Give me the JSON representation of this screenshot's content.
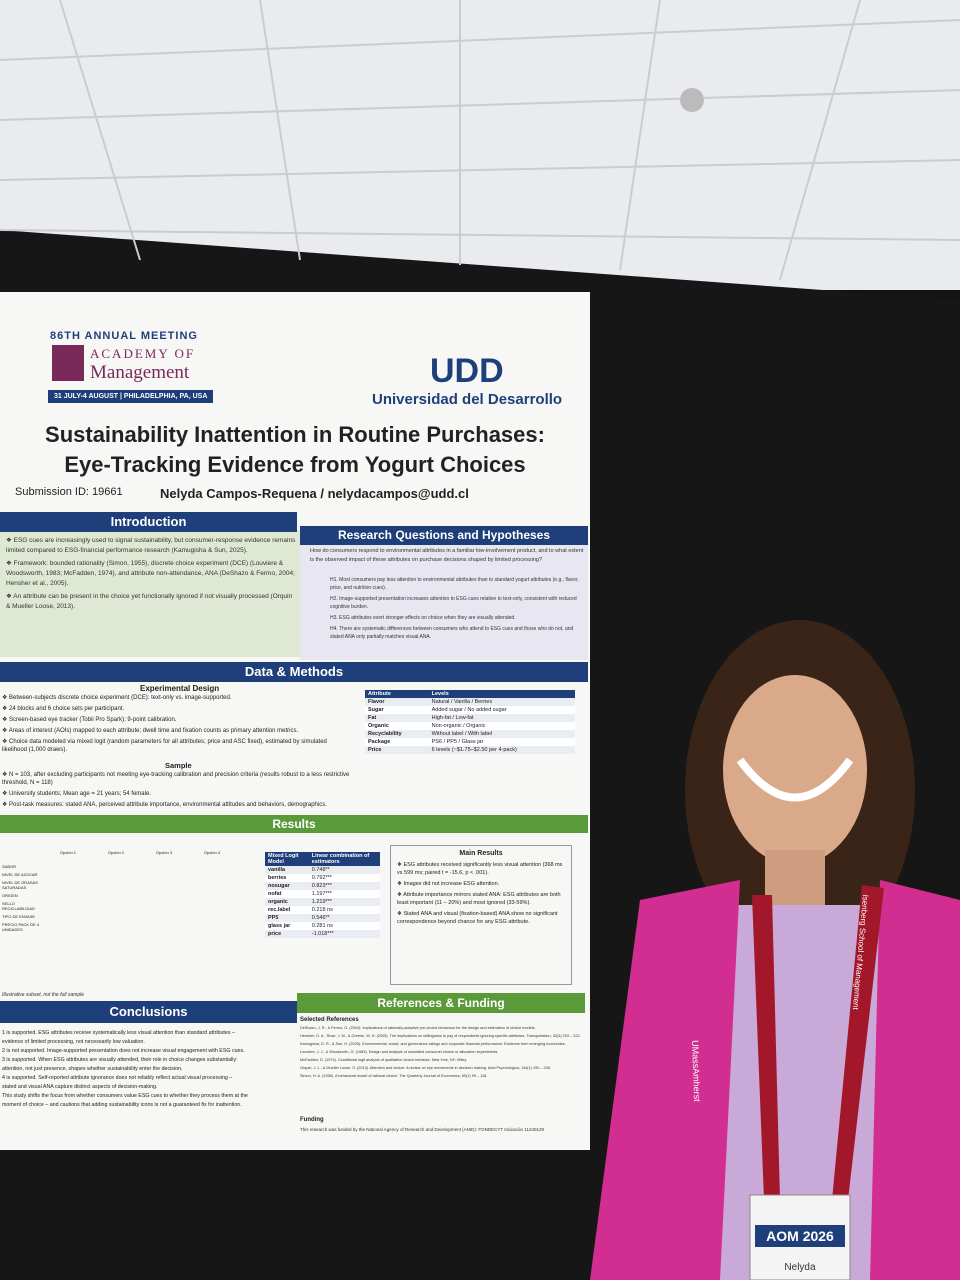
{
  "header": {
    "meeting": "86TH ANNUAL MEETING",
    "org_line1": "ACADEMY OF",
    "org_line2": "Management",
    "dates": "31 JULY-4 AUGUST | PHILADELPHIA, PA, USA",
    "logo": "UDD",
    "university": "Universidad del Desarrollo"
  },
  "title": {
    "line1": "Sustainability Inattention in Routine Purchases:",
    "line2": "Eye-Tracking Evidence from Yogurt Choices",
    "submission": "Submission ID: 19661",
    "author": "Nelyda Campos-Requena / nelydacampos@udd.cl"
  },
  "introduction": {
    "heading": "Introduction",
    "bullets": [
      "ESG cues are increasingly used to signal sustainability, but consumer-response evidence remains limited compared to ESG-financial performance research (Kamugisha & Sun, 2025).",
      "Framework: bounded rationality (Simon, 1955), discrete choice experiment (DCE) (Louviere & Woodsworth, 1983; McFadden, 1974), and attribute non-attendance, ANA (DeShazo & Fermo, 2004; Hensher et al., 2005).",
      "An attribute can be present in the choice yet functionally ignored if not visually processed (Orquin & Mueller Loose, 2013)."
    ]
  },
  "research": {
    "heading": "Research Questions and Hypotheses",
    "question": "How do consumers respond to environmental attributes in a familiar low-involvement product, and to what extent is the observed impact of these attributes on purchase decisions shaped by limited processing?",
    "hypotheses": [
      "H1. Most consumers pay less attention to environmental attributes than to standard yogurt attributes (e.g., flavor, price, and nutrition cues).",
      "H2. Image-supported presentation increases attention to ESG cues relative to text-only, consistent with reduced cognitive burden.",
      "H3. ESG attributes exert stronger effects on choice when they are visually attended.",
      "H4. There are systematic differences between consumers who attend to ESG cues and those who do not, and stated ANA only partially matches visual ANA."
    ]
  },
  "methods": {
    "heading": "Data & Methods",
    "design_heading": "Experimental Design",
    "design_bullets": [
      "Between-subjects discrete choice experiment (DCE): text-only vs. image-supported.",
      "24 blocks and 6 choice sets per participant.",
      "Screen-based eye tracker (Tobii Pro Spark); 9-point calibration.",
      "Areas of interest (AOIs) mapped to each attribute; dwell time and fixation counts as primary attention metrics.",
      "Choice data modeled via mixed logit (random parameters for all attributes; price and ASC fixed), estimated by simulated likelihood (1,000 draws)."
    ],
    "sample_heading": "Sample",
    "sample_bullets": [
      "N = 103, after excluding participants not meeting eye-tracking calibration and precision criteria (results robust to a less restrictive threshold, N = 118)",
      "University students; Mean age = 21 years; 54 female.",
      "Post-task measures: stated ANA, perceived attribute importance, environmental attitudes and behaviors, demographics."
    ],
    "attribute_table": {
      "header": [
        "Attribute",
        "Levels"
      ],
      "rows": [
        [
          "Flavor",
          "Natural / Vanilla / Berries"
        ],
        [
          "Sugar",
          "Added sugar / No added sugar"
        ],
        [
          "Fat",
          "High-fat / Low-fat"
        ],
        [
          "Organic",
          "Non-organic / Organic"
        ],
        [
          "Recyclability",
          "Without label / With label"
        ],
        [
          "Package",
          "PS6 / PP5 / Glass jar"
        ],
        [
          "Price",
          "6 levels (~$1.75–$2.50 per 4-pack)"
        ]
      ]
    }
  },
  "results": {
    "heading": "Results",
    "heatmap": {
      "options": [
        "Opción 1",
        "Opción 2",
        "Opción 3",
        "Opción 4"
      ],
      "rows": [
        "SABOR",
        "NIVEL DE AZÚCAR",
        "NIVEL DE GRASAS SATURADAS",
        "ORIGEN",
        "SELLO RECICLABILIDAD",
        "TIPO DE ENVASE",
        "PRECIO PACK DE 4 UNIDADES"
      ],
      "caption": "Illustrative subset, not the full sample"
    },
    "model_table": {
      "header": [
        "Mixed Logit Model",
        "Linear combination of estimators"
      ],
      "rows": [
        [
          "vanilla",
          "0.748**"
        ],
        [
          "berries",
          "0.792***"
        ],
        [
          "nosugar",
          "0.823***"
        ],
        [
          "nofat",
          "1.197***"
        ],
        [
          "organic",
          "1.219***"
        ],
        [
          "rec.label",
          "0.218 ns"
        ],
        [
          "PP5",
          "0.546**"
        ],
        [
          "glass jar",
          "0.281 ns"
        ],
        [
          "price",
          "-1.018***"
        ]
      ]
    },
    "main_heading": "Main Results",
    "main_bullets": [
      "ESG attributes received significantly less visual attention (368 ms vs 599 ms; paired t = -15.6, p < .001).",
      "Images did not increase ESG attention.",
      "Attribute importance mirrors stated ANA: ESG attributes are both least important (11 – 20%) and most ignored (33-59%).",
      "Stated ANA and visual (fixation-based) ANA show no significant correspondence beyond chance for any ESG attribute."
    ]
  },
  "conclusions": {
    "heading": "Conclusions",
    "lines": [
      "1 is supported. ESG attributes receive systematically less visual attention than standard attributes –",
      "evidence of limited processing, not necessarily low valuation.",
      "2 is not supported. Image-supported presentation does not increase visual engagement with ESG cues.",
      "3 is supported. When ESG attributes are visually attended, their role in choice changes substantially:",
      "attention, not just presence, shapes whether sustainability enter the decision.",
      "4 is supported. Self-reported attribute ignorance does not reliably reflect actual visual processing –",
      "stated and visual ANA capture distinct aspects of decision-making.",
      "This study shifts the focus from whether consumers value ESG cues to whether they process them at the",
      "moment of choice – and cautions that adding sustainability icons is not a guaranteed fix for inattention."
    ]
  },
  "references": {
    "heading": "References & Funding",
    "subheading": "Selected References",
    "items": [
      "DeShazo, J. R., & Fermo, G. (2004). Implications of rationally-adaptive pre-choice behaviour for the design and estimation of choice models.",
      "Hensher, D. A., Rose, J. M., & Greene, W. H. (2005). The implications on willingness to pay of respondents ignoring specific attributes. Transportation, 32(3) 203 – 222.",
      "Kamugisha, D. R., & Sun, H. (2025). Environmental, social, and governance ratings and corporate financial performance: Evidence from emerging economies.",
      "Louviere, J. J., & Woodworth, G. (1983). Design and analysis of simulated consumer choice or allocation experiments.",
      "McFadden, D. (1974). Conditional logit analysis of qualitative choice behavior. New York, NY: Wiley.",
      "Orquin, J. L., & Mueller Loose, S. (2013). Attention and choice: A review on eye movements in decision making. Acta Psychologica, 144(1) 190 – 206.",
      "Simon, H. A. (1955). A behavioral model of rational choice. The Quarterly Journal of Economics, 69(1) 99 – 118."
    ],
    "funding_heading": "Funding",
    "funding_text": "This research was funded by the National Agency of Research and Development (ANID): FONDECYT Iniciación 11240129"
  },
  "badge": {
    "lanyard1": "UMassAmherst",
    "lanyard2": "Isenberg School of Management",
    "event": "AOM 2026",
    "name": "Nelyda"
  }
}
